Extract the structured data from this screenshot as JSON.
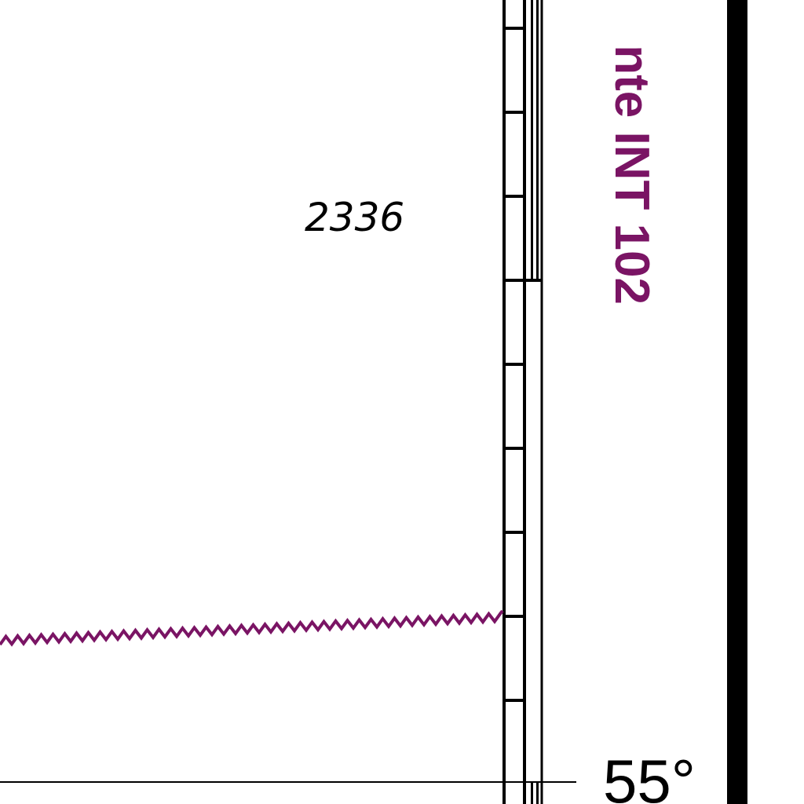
{
  "map": {
    "sounding": "2336",
    "chart_reference": "nte INT 102",
    "latitude_label": "55°",
    "colors": {
      "background": "#ffffff",
      "ink": "#000000",
      "magenta": "#7a1464"
    },
    "features": {
      "limit_line": "magenta-zigzag-boundary",
      "graduated_border": "latitude-scale-ticks",
      "latitude_parallel": "thin-black-line",
      "neatline": "thick-black-border"
    }
  }
}
